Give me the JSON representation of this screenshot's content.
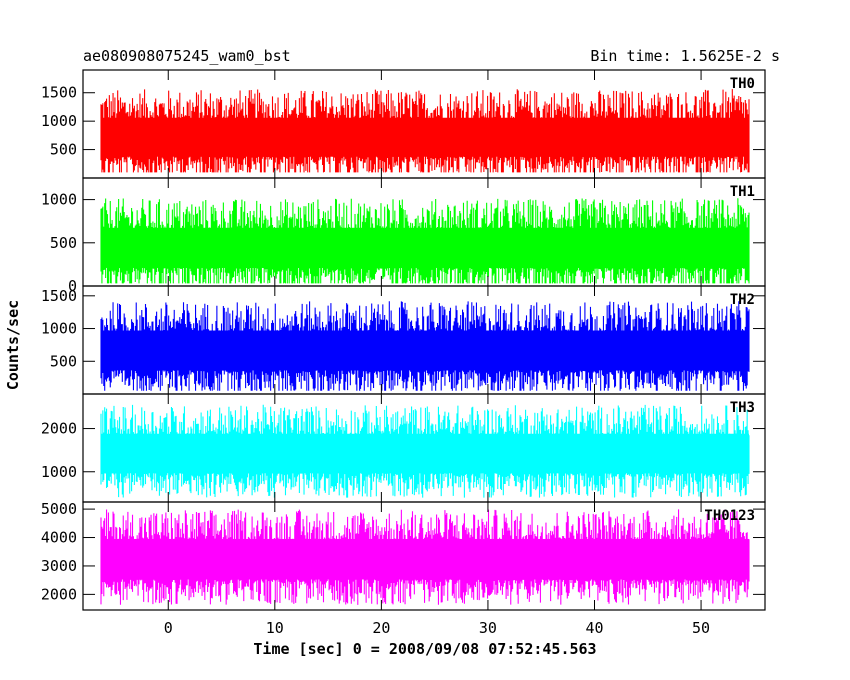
{
  "chart_data": {
    "type": "line",
    "title": "ae080908075245_wam0_bst",
    "subtitle": "Bin time: 1.5625E-2 s",
    "xlabel": "Time [sec] 0 = 2008/09/08 07:52:45.563",
    "ylabel": "Counts/sec",
    "xlim": [
      -8,
      56
    ],
    "x_ticks": [
      0,
      10,
      20,
      30,
      40,
      50
    ],
    "x_tick_labels": [
      "0",
      "10",
      "20",
      "30",
      "40",
      "50"
    ],
    "bin_time_s": 0.015625,
    "grid": false,
    "panels": [
      {
        "name": "TH0",
        "color": "#ff0000",
        "ylim": [
          0,
          1900
        ],
        "y_ticks": [
          500,
          1000,
          1500
        ],
        "y_tick_labels": [
          "500",
          "1000",
          "1500"
        ],
        "mean": 700,
        "min": 100,
        "max": 1900
      },
      {
        "name": "TH1",
        "color": "#00ff00",
        "ylim": [
          0,
          1250
        ],
        "y_ticks": [
          0,
          500,
          1000
        ],
        "y_tick_labels": [
          "0",
          "500",
          "1000"
        ],
        "mean": 430,
        "min": 30,
        "max": 1250
      },
      {
        "name": "TH2",
        "color": "#0000ff",
        "ylim": [
          0,
          1650
        ],
        "y_ticks": [
          500,
          1000,
          1500
        ],
        "y_tick_labels": [
          "500",
          "1000",
          "1500"
        ],
        "mean": 650,
        "min": 50,
        "max": 1650
      },
      {
        "name": "TH3",
        "color": "#00ffff",
        "ylim": [
          300,
          2800
        ],
        "y_ticks": [
          1000,
          2000
        ],
        "y_tick_labels": [
          "1000",
          "2000"
        ],
        "mean": 1400,
        "min": 400,
        "max": 2800
      },
      {
        "name": "TH0123",
        "color": "#ff00ff",
        "ylim": [
          1450,
          5250
        ],
        "y_ticks": [
          2000,
          3000,
          4000,
          5000
        ],
        "y_tick_labels": [
          "2000",
          "3000",
          "4000",
          "5000"
        ],
        "mean": 3200,
        "min": 1500,
        "max": 5250
      }
    ]
  }
}
